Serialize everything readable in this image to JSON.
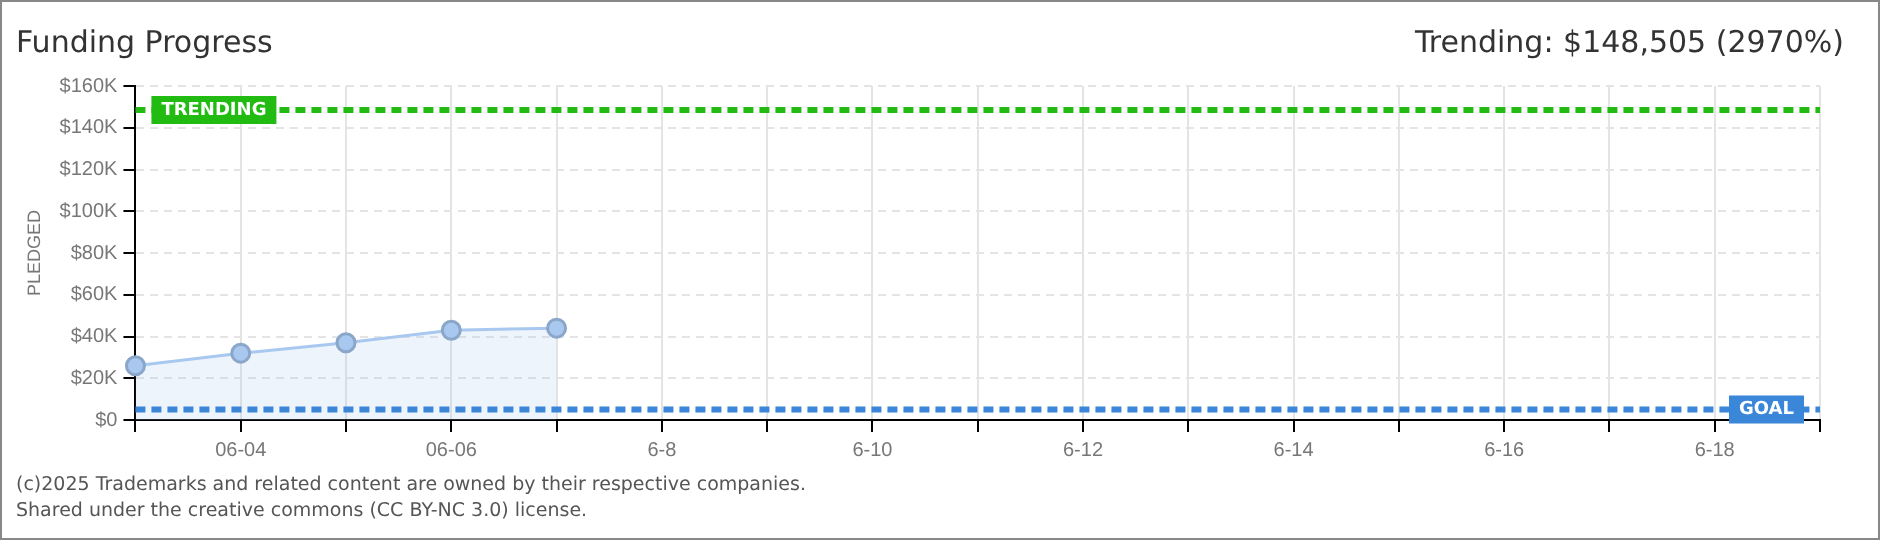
{
  "chart_data": {
    "type": "area",
    "title": "Funding Progress",
    "subtitle": "Trending: $148,505 (2970%)",
    "ylabel": "PLEDGED",
    "categories": [
      null,
      "06-04",
      null,
      "06-06",
      null,
      "6-8",
      null,
      "6-10",
      null,
      "6-12",
      null,
      "6-14",
      null,
      "6-16",
      null,
      "6-18",
      null
    ],
    "series": [
      {
        "color": "#a8c8ef",
        "values": [
          26000,
          32000,
          37000,
          43000,
          44000,
          null,
          null,
          null,
          null,
          null,
          null,
          null,
          null,
          null,
          null,
          null,
          null
        ]
      }
    ],
    "ylim": [
      0,
      160000
    ],
    "yticks": [
      {
        "value": 0,
        "label": "$0"
      },
      {
        "value": 20000,
        "label": "$20K"
      },
      {
        "value": 40000,
        "label": "$40K"
      },
      {
        "value": 60000,
        "label": "$60K"
      },
      {
        "value": 80000,
        "label": "$80K"
      },
      {
        "value": 100000,
        "label": "$100K"
      },
      {
        "value": 120000,
        "label": "$120K"
      },
      {
        "value": 140000,
        "label": "$140K"
      },
      {
        "value": 160000,
        "label": "$160K"
      }
    ],
    "ref_lines": [
      {
        "axis": "y",
        "value": 148505,
        "label": "TRENDING",
        "color": "#22bb11",
        "line_style": "dashed"
      },
      {
        "axis": "y",
        "value": 5000,
        "label": "GOAL",
        "color": "#3a86d8",
        "line_style": "dashed"
      }
    ],
    "annotations": [
      "(c)2025 Trademarks and related content are owned by their respective companies.",
      "Shared under the creative commons (CC BY-NC 3.0) license."
    ],
    "grid": true,
    "legend": false,
    "marker": "circle",
    "line_style": "solid"
  }
}
